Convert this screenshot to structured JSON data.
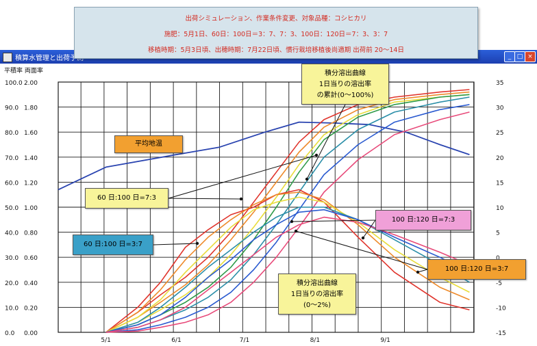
{
  "window": {
    "title": "積算水管理と出荷予測",
    "y_header": "平積率 両面率"
  },
  "header_box": {
    "line1": "出荷シミュレーション、作業条件変更、対象品種：コシヒカリ",
    "line2": "施肥：5月1日、60日：100日＝3：7、7：3、100日：120日＝7：3、3：7",
    "line3": "移植時期：5月3日頃、出穂時期：7月22日頃、慣行栽培移植後尚適期 出荷前 20〜14日"
  },
  "annotations": {
    "temp_label": "平均地温",
    "cum_box": [
      "積分溶出曲線",
      "1日当りの溶出率",
      "の累計(0〜100%)"
    ],
    "diff_box": [
      "積分溶出曲線",
      "1日当りの溶出率",
      "(0〜2%)"
    ],
    "s60_73": "60 日:100 日=7:3",
    "s60_37": "60 日:100 日=3:7",
    "s100_73": "100 日:120 日=7:3",
    "s100_37": "100 日:120 日=3:7"
  },
  "colors": {
    "grid": "#1a1a1a",
    "temp": "#2a44b0",
    "red": "#e0342c",
    "orange": "#ee8a2a",
    "yellow": "#e8dc3a",
    "green": "#2e9a48",
    "blue": "#2a5ad0",
    "teal": "#2a8ea8",
    "pink": "#e84a7a",
    "label_orange": "#f2a030",
    "label_yellow": "#f8f49a",
    "label_teal": "#3aa0c8",
    "label_pink": "#f0a0d8",
    "header_text": "#d42a20"
  },
  "chart_data": {
    "type": "line",
    "x_type": "date",
    "x_range": [
      "2000-04-10",
      "2000-10-10"
    ],
    "x_ticks": [
      {
        "date": "2000-05-01",
        "label": "5/1"
      },
      {
        "date": "2000-06-01",
        "label": "6/1"
      },
      {
        "date": "2000-07-01",
        "label": "7/1"
      },
      {
        "date": "2000-08-01",
        "label": "8/1"
      },
      {
        "date": "2000-09-01",
        "label": "9/1"
      }
    ],
    "y_left_outer": {
      "range": [
        0,
        100
      ],
      "ticks": [
        "100.0",
        "90.0",
        "80.0",
        "70.0",
        "60.0",
        "50.0",
        "40.0",
        "30.0",
        "20.0",
        "10.0",
        "0.0"
      ]
    },
    "y_left_inner": {
      "range": [
        0,
        2
      ],
      "ticks": [
        "2.00",
        "1.80",
        "1.60",
        "1.40",
        "1.20",
        "1.00",
        "0.80",
        "0.60",
        "0.40",
        "0.20",
        "0.00"
      ]
    },
    "y_right": {
      "range": [
        -15,
        35
      ],
      "ticks": [
        "35",
        "30",
        "25",
        "20",
        "15",
        "10",
        "5",
        "0",
        "-5",
        "-10",
        "-15"
      ]
    },
    "grid": true,
    "series": [
      {
        "name": "平均地温",
        "axis": "right",
        "color": "temp",
        "points": [
          [
            "2000-04-10",
            13.5
          ],
          [
            "2000-05-01",
            18
          ],
          [
            "2000-06-01",
            20.5
          ],
          [
            "2000-06-20",
            22
          ],
          [
            "2000-07-10",
            25
          ],
          [
            "2000-07-25",
            27
          ],
          [
            "2000-08-10",
            26.8
          ],
          [
            "2000-08-25",
            26.5
          ],
          [
            "2000-09-10",
            25
          ],
          [
            "2000-09-25",
            22.5
          ],
          [
            "2000-10-08",
            20.5
          ]
        ]
      },
      {
        "axis": "left",
        "color": "red",
        "points": [
          [
            "2000-05-01",
            0
          ],
          [
            "2000-05-15",
            8
          ],
          [
            "2000-05-25",
            15
          ],
          [
            "2000-06-05",
            22
          ],
          [
            "2000-06-15",
            30
          ],
          [
            "2000-06-25",
            40
          ],
          [
            "2000-07-05",
            52
          ],
          [
            "2000-07-15",
            64
          ],
          [
            "2000-07-25",
            76
          ],
          [
            "2000-08-05",
            85
          ],
          [
            "2000-08-20",
            91
          ],
          [
            "2000-09-05",
            94
          ],
          [
            "2000-09-25",
            96
          ],
          [
            "2000-10-08",
            97
          ]
        ]
      },
      {
        "axis": "left",
        "color": "orange",
        "points": [
          [
            "2000-05-01",
            0
          ],
          [
            "2000-05-15",
            6
          ],
          [
            "2000-05-25",
            12
          ],
          [
            "2000-06-05",
            19
          ],
          [
            "2000-06-15",
            27
          ],
          [
            "2000-06-25",
            37
          ],
          [
            "2000-07-05",
            48
          ],
          [
            "2000-07-15",
            60
          ],
          [
            "2000-07-25",
            72
          ],
          [
            "2000-08-05",
            82
          ],
          [
            "2000-08-20",
            89
          ],
          [
            "2000-09-05",
            93
          ],
          [
            "2000-09-25",
            95
          ],
          [
            "2000-10-08",
            96
          ]
        ]
      },
      {
        "axis": "left",
        "color": "yellow",
        "points": [
          [
            "2000-05-01",
            0
          ],
          [
            "2000-05-15",
            4
          ],
          [
            "2000-05-25",
            9
          ],
          [
            "2000-06-05",
            15
          ],
          [
            "2000-06-15",
            22
          ],
          [
            "2000-06-25",
            31
          ],
          [
            "2000-07-05",
            42
          ],
          [
            "2000-07-15",
            54
          ],
          [
            "2000-07-25",
            67
          ],
          [
            "2000-08-05",
            79
          ],
          [
            "2000-08-20",
            87
          ],
          [
            "2000-09-05",
            92
          ],
          [
            "2000-09-25",
            94
          ],
          [
            "2000-10-08",
            95
          ]
        ]
      },
      {
        "axis": "left",
        "color": "green",
        "points": [
          [
            "2000-05-01",
            0
          ],
          [
            "2000-05-15",
            3
          ],
          [
            "2000-05-25",
            7
          ],
          [
            "2000-06-05",
            12
          ],
          [
            "2000-06-15",
            18
          ],
          [
            "2000-06-25",
            26
          ],
          [
            "2000-07-05",
            37
          ],
          [
            "2000-07-15",
            50
          ],
          [
            "2000-07-25",
            64
          ],
          [
            "2000-08-05",
            77
          ],
          [
            "2000-08-20",
            86
          ],
          [
            "2000-09-05",
            91
          ],
          [
            "2000-09-25",
            94
          ],
          [
            "2000-10-08",
            95
          ]
        ]
      },
      {
        "axis": "left",
        "color": "teal",
        "points": [
          [
            "2000-05-01",
            0
          ],
          [
            "2000-05-15",
            2
          ],
          [
            "2000-05-25",
            5
          ],
          [
            "2000-06-05",
            9
          ],
          [
            "2000-06-15",
            14
          ],
          [
            "2000-06-25",
            21
          ],
          [
            "2000-07-05",
            31
          ],
          [
            "2000-07-15",
            43
          ],
          [
            "2000-07-25",
            56
          ],
          [
            "2000-08-05",
            70
          ],
          [
            "2000-08-20",
            81
          ],
          [
            "2000-09-05",
            88
          ],
          [
            "2000-09-25",
            92
          ],
          [
            "2000-10-08",
            94
          ]
        ]
      },
      {
        "axis": "left",
        "color": "blue",
        "points": [
          [
            "2000-05-01",
            0
          ],
          [
            "2000-05-15",
            1
          ],
          [
            "2000-05-25",
            3
          ],
          [
            "2000-06-05",
            6
          ],
          [
            "2000-06-15",
            10
          ],
          [
            "2000-06-25",
            16
          ],
          [
            "2000-07-05",
            25
          ],
          [
            "2000-07-15",
            36
          ],
          [
            "2000-07-25",
            49
          ],
          [
            "2000-08-05",
            63
          ],
          [
            "2000-08-20",
            75
          ],
          [
            "2000-09-05",
            84
          ],
          [
            "2000-09-25",
            89
          ],
          [
            "2000-10-08",
            91
          ]
        ]
      },
      {
        "axis": "left",
        "color": "pink",
        "points": [
          [
            "2000-05-01",
            0
          ],
          [
            "2000-05-15",
            0.5
          ],
          [
            "2000-05-25",
            2
          ],
          [
            "2000-06-05",
            4
          ],
          [
            "2000-06-15",
            7
          ],
          [
            "2000-06-25",
            12
          ],
          [
            "2000-07-05",
            20
          ],
          [
            "2000-07-15",
            30
          ],
          [
            "2000-07-25",
            42
          ],
          [
            "2000-08-05",
            56
          ],
          [
            "2000-08-20",
            69
          ],
          [
            "2000-09-05",
            79
          ],
          [
            "2000-09-25",
            85
          ],
          [
            "2000-10-08",
            88
          ]
        ]
      },
      {
        "axis": "left",
        "color": "red",
        "points": [
          [
            "2000-05-01",
            0
          ],
          [
            "2000-05-15",
            10
          ],
          [
            "2000-05-25",
            20
          ],
          [
            "2000-06-05",
            34
          ],
          [
            "2000-06-15",
            41
          ],
          [
            "2000-06-25",
            47
          ],
          [
            "2000-07-05",
            50
          ],
          [
            "2000-07-15",
            55
          ],
          [
            "2000-07-25",
            57
          ],
          [
            "2000-08-05",
            52
          ],
          [
            "2000-08-20",
            38
          ],
          [
            "2000-09-05",
            24
          ],
          [
            "2000-09-25",
            12
          ],
          [
            "2000-10-08",
            9
          ]
        ]
      },
      {
        "axis": "left",
        "color": "orange",
        "points": [
          [
            "2000-05-01",
            0
          ],
          [
            "2000-05-15",
            8
          ],
          [
            "2000-05-25",
            17
          ],
          [
            "2000-06-05",
            29
          ],
          [
            "2000-06-15",
            38
          ],
          [
            "2000-06-25",
            45
          ],
          [
            "2000-07-05",
            51
          ],
          [
            "2000-07-15",
            55
          ],
          [
            "2000-07-25",
            56
          ],
          [
            "2000-08-05",
            53
          ],
          [
            "2000-08-20",
            43
          ],
          [
            "2000-09-05",
            30
          ],
          [
            "2000-09-25",
            18
          ],
          [
            "2000-10-08",
            13
          ]
        ]
      },
      {
        "axis": "left",
        "color": "yellow",
        "points": [
          [
            "2000-05-01",
            0
          ],
          [
            "2000-05-15",
            6
          ],
          [
            "2000-05-25",
            13
          ],
          [
            "2000-06-05",
            24
          ],
          [
            "2000-06-15",
            33
          ],
          [
            "2000-06-25",
            42
          ],
          [
            "2000-07-05",
            49
          ],
          [
            "2000-07-15",
            52
          ],
          [
            "2000-07-25",
            54
          ],
          [
            "2000-08-05",
            52
          ],
          [
            "2000-08-20",
            44
          ],
          [
            "2000-09-05",
            33
          ],
          [
            "2000-09-25",
            22
          ],
          [
            "2000-10-08",
            16
          ]
        ]
      },
      {
        "axis": "left",
        "color": "teal",
        "points": [
          [
            "2000-05-01",
            0
          ],
          [
            "2000-05-15",
            4
          ],
          [
            "2000-05-25",
            10
          ],
          [
            "2000-06-05",
            18
          ],
          [
            "2000-06-15",
            26
          ],
          [
            "2000-06-25",
            33
          ],
          [
            "2000-07-05",
            40
          ],
          [
            "2000-07-15",
            46
          ],
          [
            "2000-07-25",
            50
          ],
          [
            "2000-08-05",
            50
          ],
          [
            "2000-08-20",
            45
          ],
          [
            "2000-09-05",
            37
          ],
          [
            "2000-09-25",
            27
          ],
          [
            "2000-10-08",
            20
          ]
        ]
      },
      {
        "axis": "left",
        "color": "blue",
        "points": [
          [
            "2000-05-01",
            0
          ],
          [
            "2000-05-15",
            3
          ],
          [
            "2000-05-25",
            7
          ],
          [
            "2000-06-05",
            14
          ],
          [
            "2000-06-15",
            22
          ],
          [
            "2000-06-25",
            29
          ],
          [
            "2000-07-05",
            37
          ],
          [
            "2000-07-15",
            43
          ],
          [
            "2000-07-25",
            48
          ],
          [
            "2000-08-05",
            49
          ],
          [
            "2000-08-20",
            45
          ],
          [
            "2000-09-05",
            38
          ],
          [
            "2000-09-25",
            30
          ],
          [
            "2000-10-08",
            24
          ]
        ]
      },
      {
        "axis": "left",
        "color": "pink",
        "points": [
          [
            "2000-05-01",
            0
          ],
          [
            "2000-05-15",
            2
          ],
          [
            "2000-05-25",
            5
          ],
          [
            "2000-06-05",
            10
          ],
          [
            "2000-06-15",
            17
          ],
          [
            "2000-06-25",
            24
          ],
          [
            "2000-07-05",
            31
          ],
          [
            "2000-07-15",
            38
          ],
          [
            "2000-07-25",
            43
          ],
          [
            "2000-08-05",
            46
          ],
          [
            "2000-08-20",
            44
          ],
          [
            "2000-09-05",
            39
          ],
          [
            "2000-09-25",
            32
          ],
          [
            "2000-10-08",
            27
          ]
        ]
      }
    ]
  }
}
